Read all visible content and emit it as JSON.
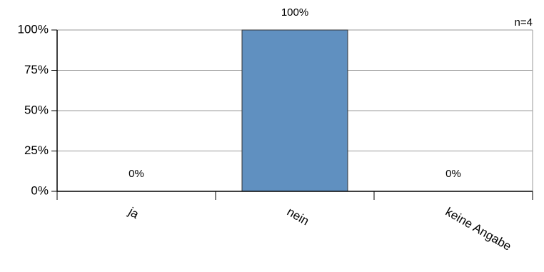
{
  "chart_data": {
    "type": "bar",
    "categories": [
      "ja",
      "nein",
      "keine Angabe"
    ],
    "values": [
      0,
      100,
      0
    ],
    "value_labels": [
      "0%",
      "100%",
      "0%"
    ],
    "color": "#6090c0",
    "annotation": "n=4",
    "ylim": [
      0,
      100
    ],
    "yticks": [
      {
        "value": 0,
        "label": "0%"
      },
      {
        "value": 25,
        "label": "25%"
      },
      {
        "value": 50,
        "label": "50%"
      },
      {
        "value": 75,
        "label": "75%"
      },
      {
        "value": 100,
        "label": "100%"
      }
    ],
    "grid": true
  }
}
